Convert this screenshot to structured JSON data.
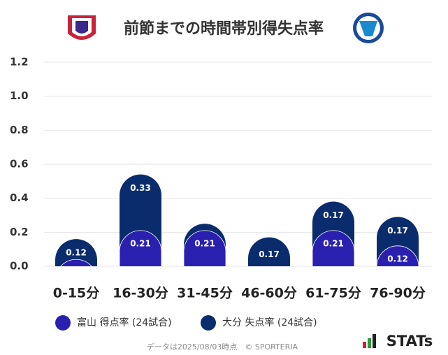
{
  "chart_data": {
    "type": "stacked-bar",
    "title": "前節までの時間帯別得失点率",
    "categories": [
      "0-15分",
      "16-30分",
      "31-45分",
      "46-60分",
      "61-75分",
      "76-90分"
    ],
    "series": [
      {
        "name": "富山 得点率 (24試合)",
        "color": "#2a20b0",
        "values": [
          0.04,
          0.21,
          0.21,
          0,
          0.21,
          0.12
        ]
      },
      {
        "name": "大分 失点率 (24試合)",
        "color": "#0b2c6c",
        "values": [
          0.12,
          0.33,
          0.04,
          0.17,
          0.17,
          0.17
        ]
      }
    ],
    "ylim": [
      0,
      1.2
    ],
    "yticks": [
      {
        "value": 0,
        "label": "0.0"
      },
      0.2,
      0.4,
      0.6,
      0.8,
      {
        "value": 1,
        "label": "1.0"
      },
      1.2
    ],
    "grid": true,
    "footer": "データは2025/08/03時点　© SPORTERIA",
    "brand": "STATs"
  }
}
